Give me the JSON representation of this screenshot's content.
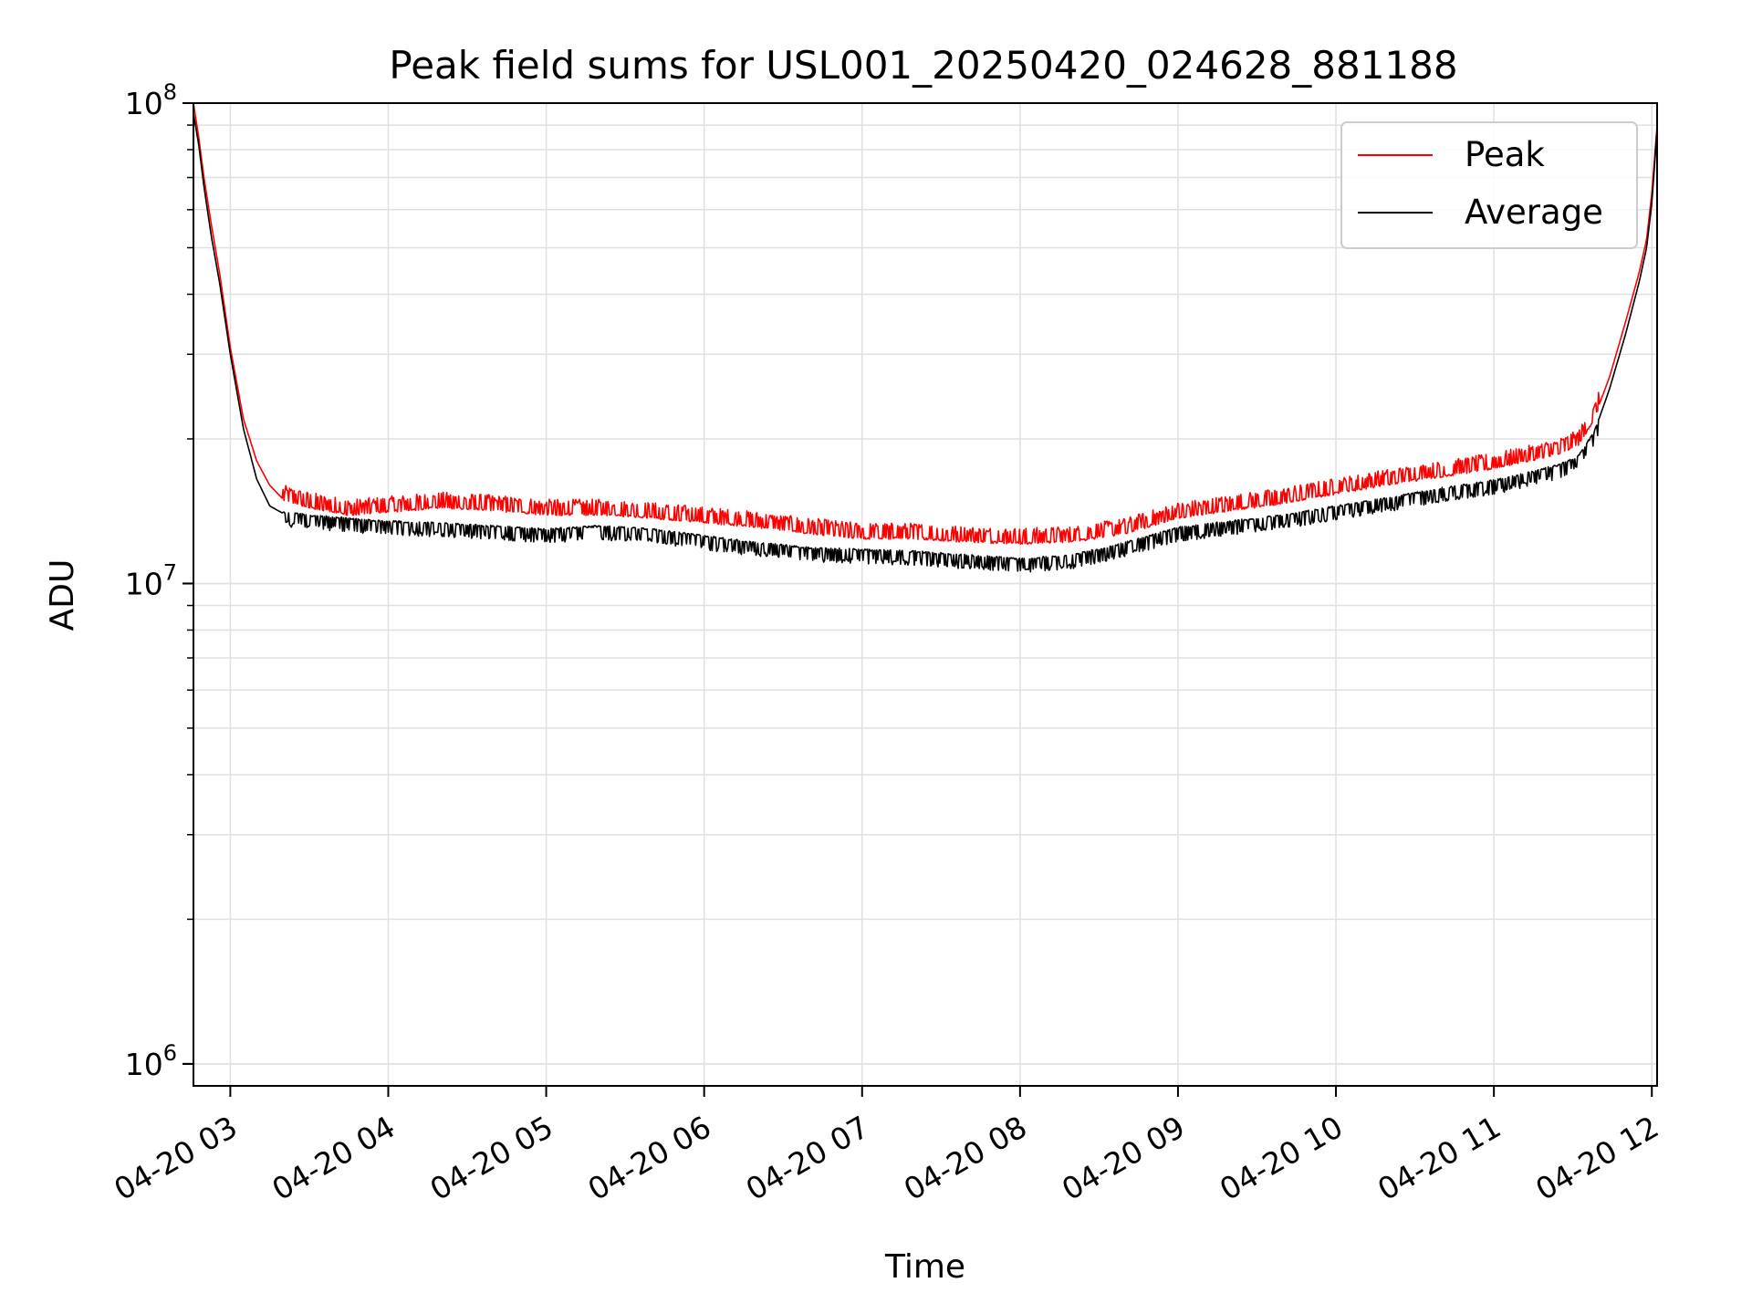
{
  "chart_data": {
    "type": "line",
    "title": "Peak field sums for USL001_20250420_024628_881188",
    "xlabel": "Time",
    "ylabel": "ADU",
    "yscale": "log",
    "ylim": [
      900000,
      100000000
    ],
    "xlim": [
      "04-20 02:46",
      "04-20 12:02"
    ],
    "x_ticks": [
      "04-20 03",
      "04-20 04",
      "04-20 05",
      "04-20 06",
      "04-20 07",
      "04-20 08",
      "04-20 09",
      "04-20 10",
      "04-20 11",
      "04-20 12"
    ],
    "y_ticks": [
      {
        "value": 1000000,
        "base": "10",
        "exp": "6"
      },
      {
        "value": 10000000,
        "base": "10",
        "exp": "7"
      },
      {
        "value": 100000000,
        "base": "10",
        "exp": "8"
      }
    ],
    "grid": true,
    "legend_position": "top-right",
    "colors": {
      "peak": "#ff0000",
      "average": "#000000",
      "grid": "#e0e0e0"
    },
    "x": [
      "02:46",
      "02:48",
      "02:50",
      "02:53",
      "02:56",
      "03:00",
      "03:05",
      "03:10",
      "03:15",
      "03:20",
      "03:30",
      "03:45",
      "04:00",
      "04:20",
      "04:40",
      "05:00",
      "05:20",
      "05:40",
      "06:00",
      "06:20",
      "06:40",
      "07:00",
      "07:20",
      "07:40",
      "08:00",
      "08:20",
      "08:40",
      "09:00",
      "09:20",
      "09:40",
      "10:00",
      "10:20",
      "10:40",
      "11:00",
      "11:15",
      "11:25",
      "11:32",
      "11:38",
      "11:44",
      "11:50",
      "11:55",
      "11:58",
      "12:00",
      "12:02"
    ],
    "series": [
      {
        "name": "Peak",
        "values": [
          100000000,
          85000000,
          70000000,
          55000000,
          44000000,
          31000000,
          22000000,
          18000000,
          16000000,
          15000000,
          14500000,
          14000000,
          14200000,
          14500000,
          14300000,
          14000000,
          14000000,
          13800000,
          13500000,
          13200000,
          12800000,
          12500000,
          12500000,
          12300000,
          12200000,
          12300000,
          12800000,
          13800000,
          14300000,
          14800000,
          15500000,
          16200000,
          16800000,
          17500000,
          18200000,
          18800000,
          19500000,
          22000000,
          27000000,
          35000000,
          44000000,
          52000000,
          65000000,
          90000000
        ]
      },
      {
        "name": "Average",
        "values": [
          95000000,
          82000000,
          67000000,
          52000000,
          42000000,
          30000000,
          21000000,
          16500000,
          14500000,
          14000000,
          13800000,
          13600000,
          13400000,
          13300000,
          13100000,
          12900000,
          13100000,
          12900000,
          12500000,
          12100000,
          11800000,
          11700000,
          11600000,
          11400000,
          11200000,
          11400000,
          12100000,
          13000000,
          13400000,
          13800000,
          14400000,
          15000000,
          15700000,
          16300000,
          17000000,
          17600000,
          18300000,
          20500000,
          25500000,
          33000000,
          42000000,
          50000000,
          62000000,
          88000000
        ]
      }
    ]
  }
}
